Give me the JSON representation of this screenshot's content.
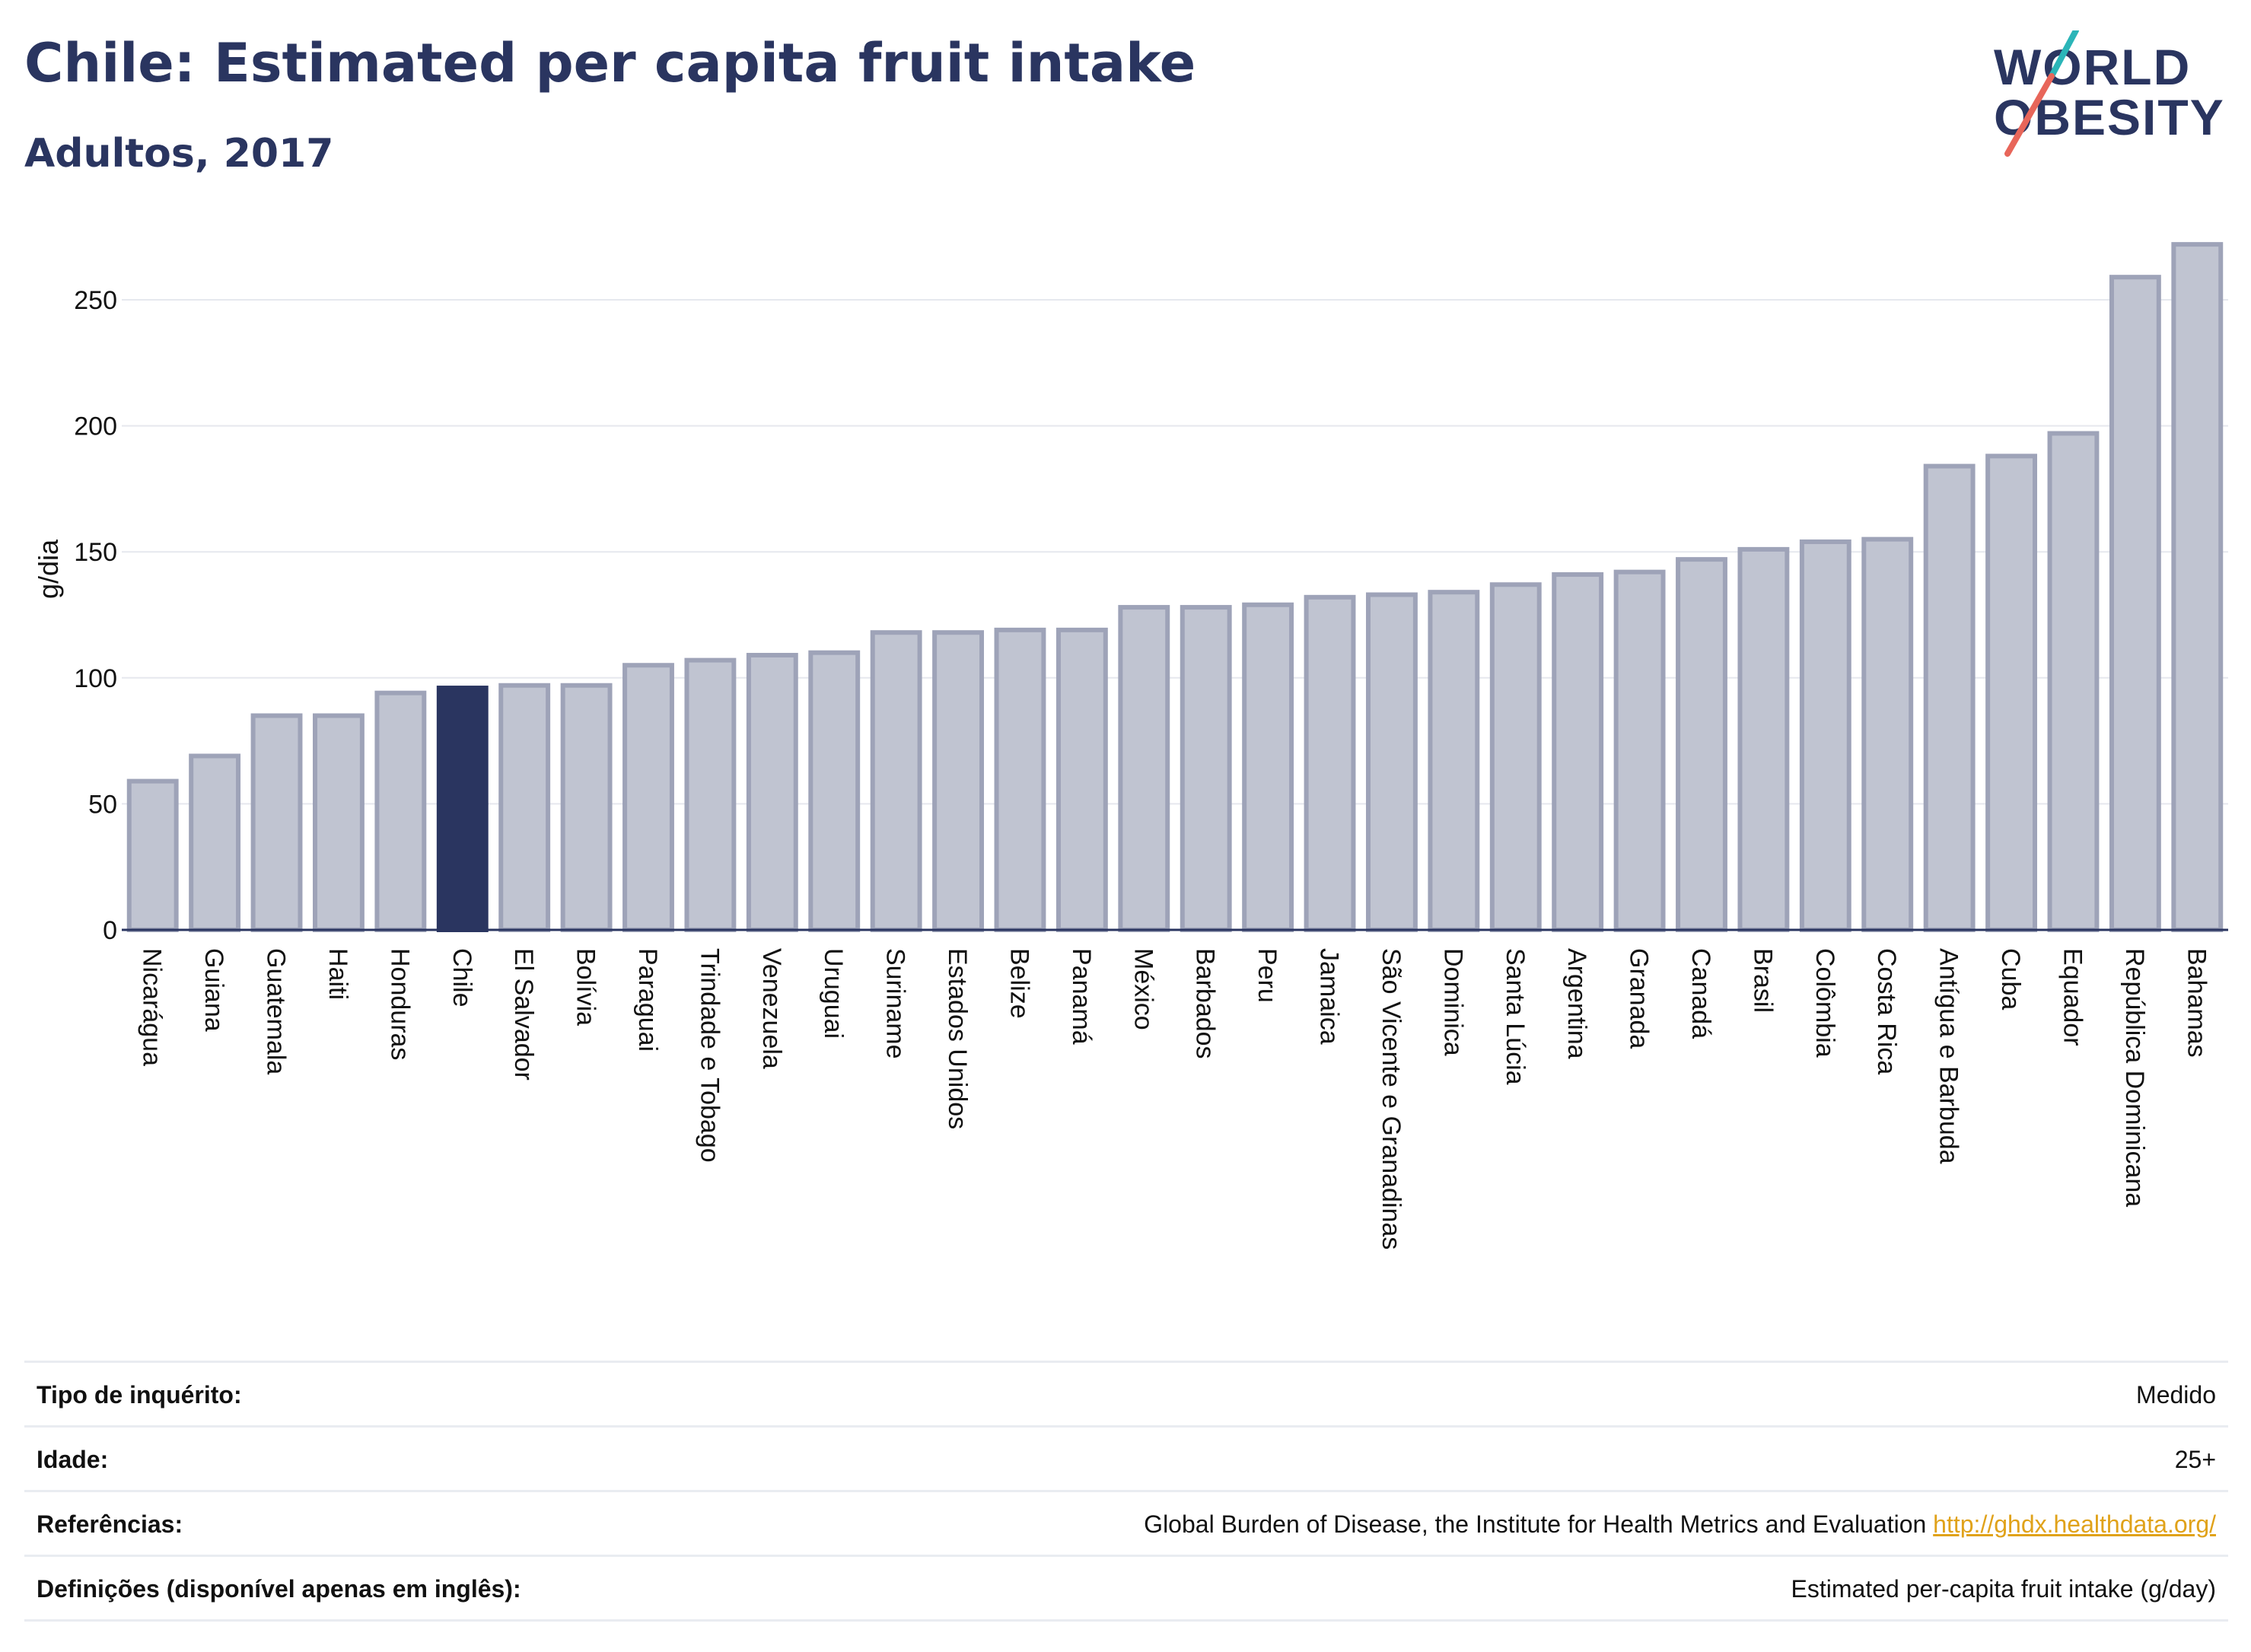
{
  "header": {
    "title": "Chile: Estimated per capita fruit intake",
    "subtitle": "Adultos, 2017"
  },
  "logo": {
    "line1": "WORLD",
    "line2": "OBESITY"
  },
  "colors": {
    "highlight": "#2a3560",
    "bar": "#c0c4d1",
    "bar_border": "#9ea3b8",
    "grid": "#e6e8ee",
    "accent_teal": "#2bb5b8",
    "accent_red": "#e8665a"
  },
  "chart_data": {
    "type": "bar",
    "ylabel": "g/dia",
    "ylim": [
      0,
      275
    ],
    "yticks": [
      0,
      50,
      100,
      150,
      200,
      250
    ],
    "grid": true,
    "highlight": "Chile",
    "categories": [
      "Nicarágua",
      "Guiana",
      "Guatemala",
      "Haiti",
      "Honduras",
      "Chile",
      "El Salvador",
      "Bolívia",
      "Paraguai",
      "Trindade e Tobago",
      "Venezuela",
      "Uruguai",
      "Suriname",
      "Estados Unidos",
      "Belize",
      "Panamá",
      "México",
      "Barbados",
      "Peru",
      "Jamaica",
      "São Vicente e Granadinas",
      "Dominica",
      "Santa Lúcia",
      "Argentina",
      "Granada",
      "Canadá",
      "Brasil",
      "Colômbia",
      "Costa Rica",
      "Antígua e Barbuda",
      "Cuba",
      "Equador",
      "República Dominicana",
      "Bahamas"
    ],
    "values": [
      59,
      69,
      85,
      85,
      94,
      96,
      97,
      97,
      105,
      107,
      109,
      110,
      118,
      118,
      119,
      119,
      128,
      128,
      129,
      132,
      133,
      134,
      137,
      141,
      142,
      147,
      151,
      154,
      155,
      184,
      188,
      197,
      259,
      272
    ]
  },
  "info": [
    {
      "label": "Tipo de inquérito:",
      "value": "Medido"
    },
    {
      "label": "Idade:",
      "value": "25+"
    },
    {
      "label": "Referências:",
      "value": "Global Burden of Disease, the Institute for Health Metrics and Evaluation",
      "link": "http://ghdx.healthdata.org/"
    },
    {
      "label": "Definições (disponível apenas em inglês):",
      "value": "Estimated per-capita fruit intake (g/day)"
    }
  ]
}
